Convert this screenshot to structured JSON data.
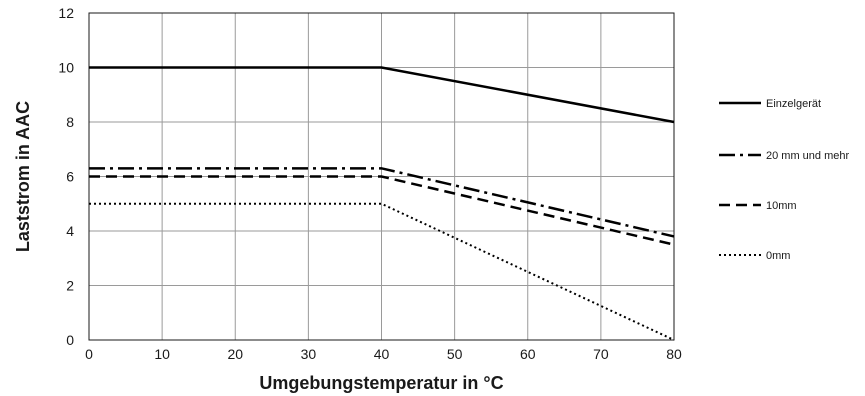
{
  "chart_data": {
    "type": "line",
    "title": "",
    "xlabel": "Umgebungstemperatur in °C",
    "ylabel": "Laststrom in AAC",
    "xlim": [
      0,
      80
    ],
    "ylim": [
      0,
      12
    ],
    "xticks": [
      "0",
      "10",
      "20",
      "30",
      "40",
      "50",
      "60",
      "70",
      "80"
    ],
    "yticks": [
      "0",
      "2",
      "4",
      "6",
      "8",
      "10",
      "12"
    ],
    "grid": true,
    "legend_position": "right",
    "series": [
      {
        "name": "Einzelgerät",
        "style": "solid",
        "x": [
          0,
          40,
          80
        ],
        "y": [
          10,
          10,
          8
        ]
      },
      {
        "name": "20 mm und mehr",
        "style": "dash-dot",
        "x": [
          0,
          40,
          80
        ],
        "y": [
          6.3,
          6.3,
          3.8
        ]
      },
      {
        "name": "10mm",
        "style": "dashed",
        "x": [
          0,
          40,
          80
        ],
        "y": [
          6,
          6,
          3.5
        ]
      },
      {
        "name": "0mm",
        "style": "dotted",
        "x": [
          0,
          40,
          80
        ],
        "y": [
          5,
          5,
          0
        ]
      }
    ]
  }
}
